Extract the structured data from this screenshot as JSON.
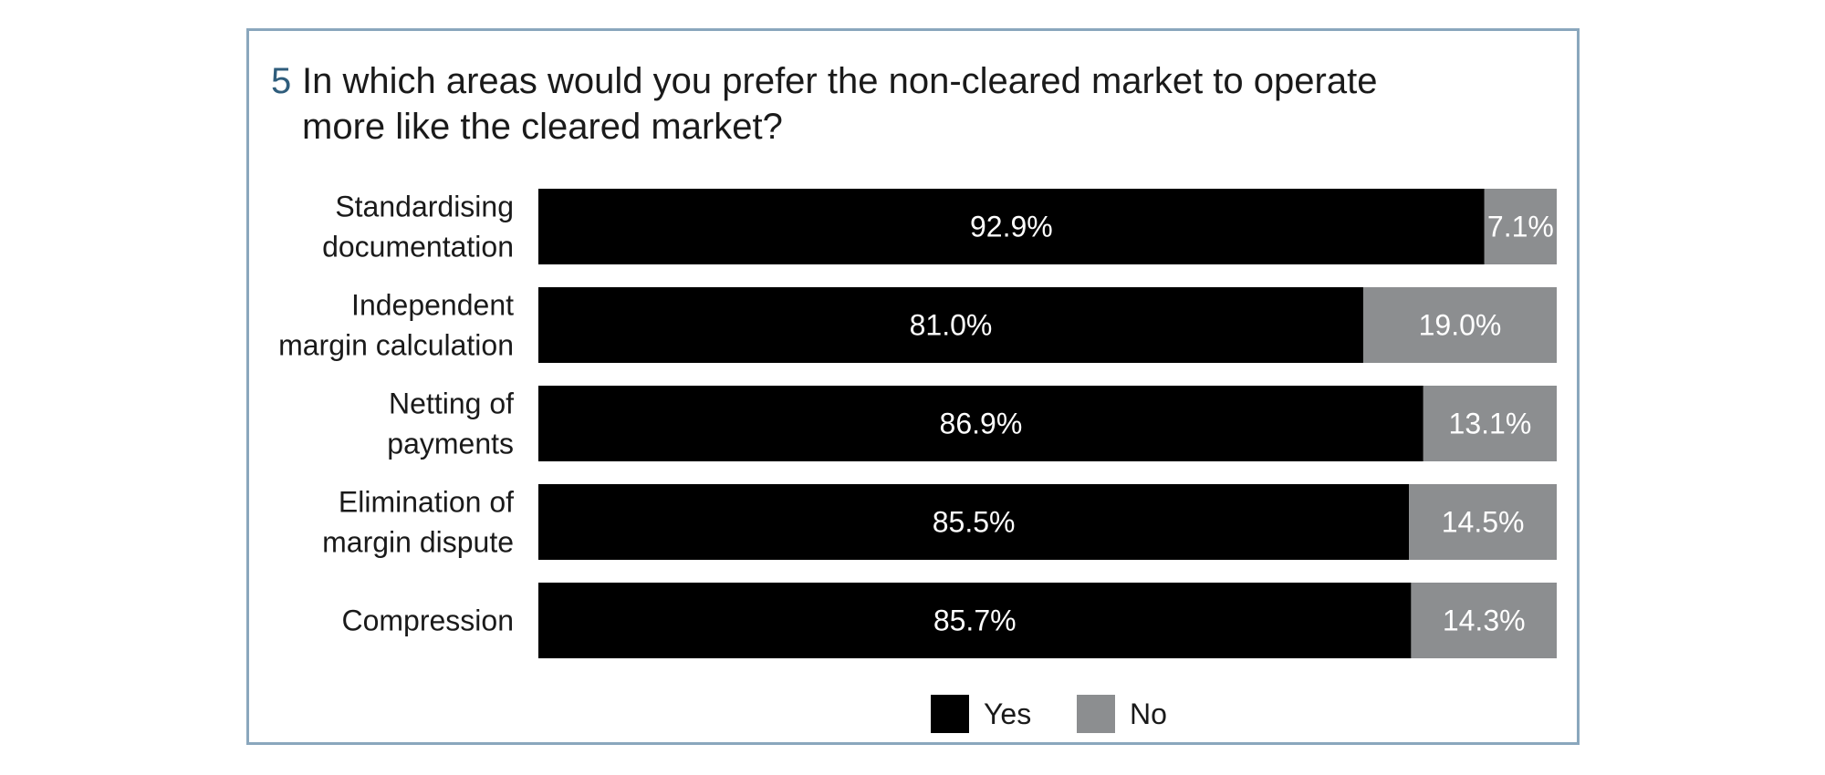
{
  "question": {
    "number": "5",
    "text": "In which areas would you prefer the non-cleared market to operate more like the cleared market?"
  },
  "chart_data": {
    "type": "bar",
    "orientation": "horizontal",
    "stacked": true,
    "categories": [
      [
        "Standardising",
        "documentation"
      ],
      [
        "Independent",
        "margin calculation"
      ],
      [
        "Netting of",
        "payments"
      ],
      [
        "Elimination of",
        "margin dispute"
      ],
      [
        "Compression"
      ]
    ],
    "series": [
      {
        "name": "Yes",
        "color": "#000000",
        "values": [
          92.9,
          81.0,
          86.9,
          85.5,
          85.7
        ],
        "labels": [
          "92.9%",
          "81.0%",
          "86.9%",
          "85.5%",
          "85.7%"
        ]
      },
      {
        "name": "No",
        "color": "#8c8e90",
        "values": [
          7.1,
          19.0,
          13.1,
          14.5,
          14.3
        ],
        "labels": [
          "7.1%",
          "19.0%",
          "13.1%",
          "14.5%",
          "14.3%"
        ]
      }
    ],
    "xlim": [
      0,
      100
    ],
    "grid": false,
    "legend_position": "bottom-center"
  }
}
